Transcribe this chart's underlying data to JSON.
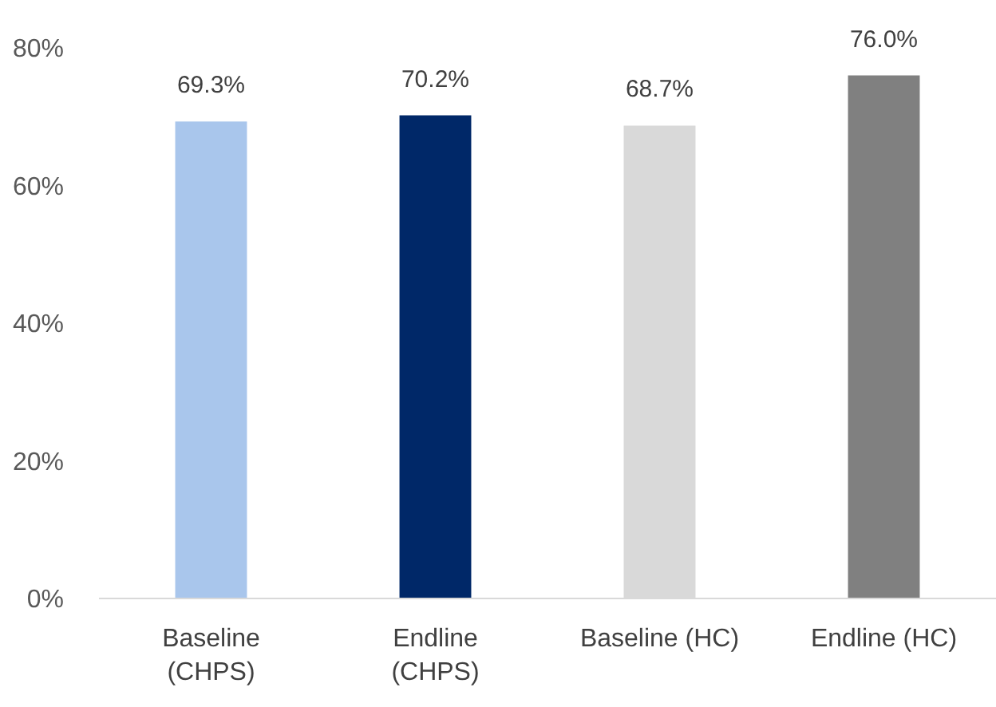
{
  "chart_data": {
    "type": "bar",
    "categories": [
      "Baseline (CHPS)",
      "Endline (CHPS)",
      "Baseline (HC)",
      "Endline (HC)"
    ],
    "values": [
      69.3,
      70.2,
      68.7,
      76.0
    ],
    "colors": [
      "#a9c6ec",
      "#002868",
      "#d9d9d9",
      "#808080"
    ],
    "value_labels": [
      "69.3%",
      "70.2%",
      "68.7%",
      "76.0%"
    ],
    "ylim": [
      0,
      80
    ],
    "yticks": [
      {
        "value": 0,
        "label": "0%"
      },
      {
        "value": 20,
        "label": "20%"
      },
      {
        "value": 40,
        "label": "40%"
      },
      {
        "value": 60,
        "label": "60%"
      },
      {
        "value": 80,
        "label": "80%"
      }
    ],
    "grid": false
  }
}
